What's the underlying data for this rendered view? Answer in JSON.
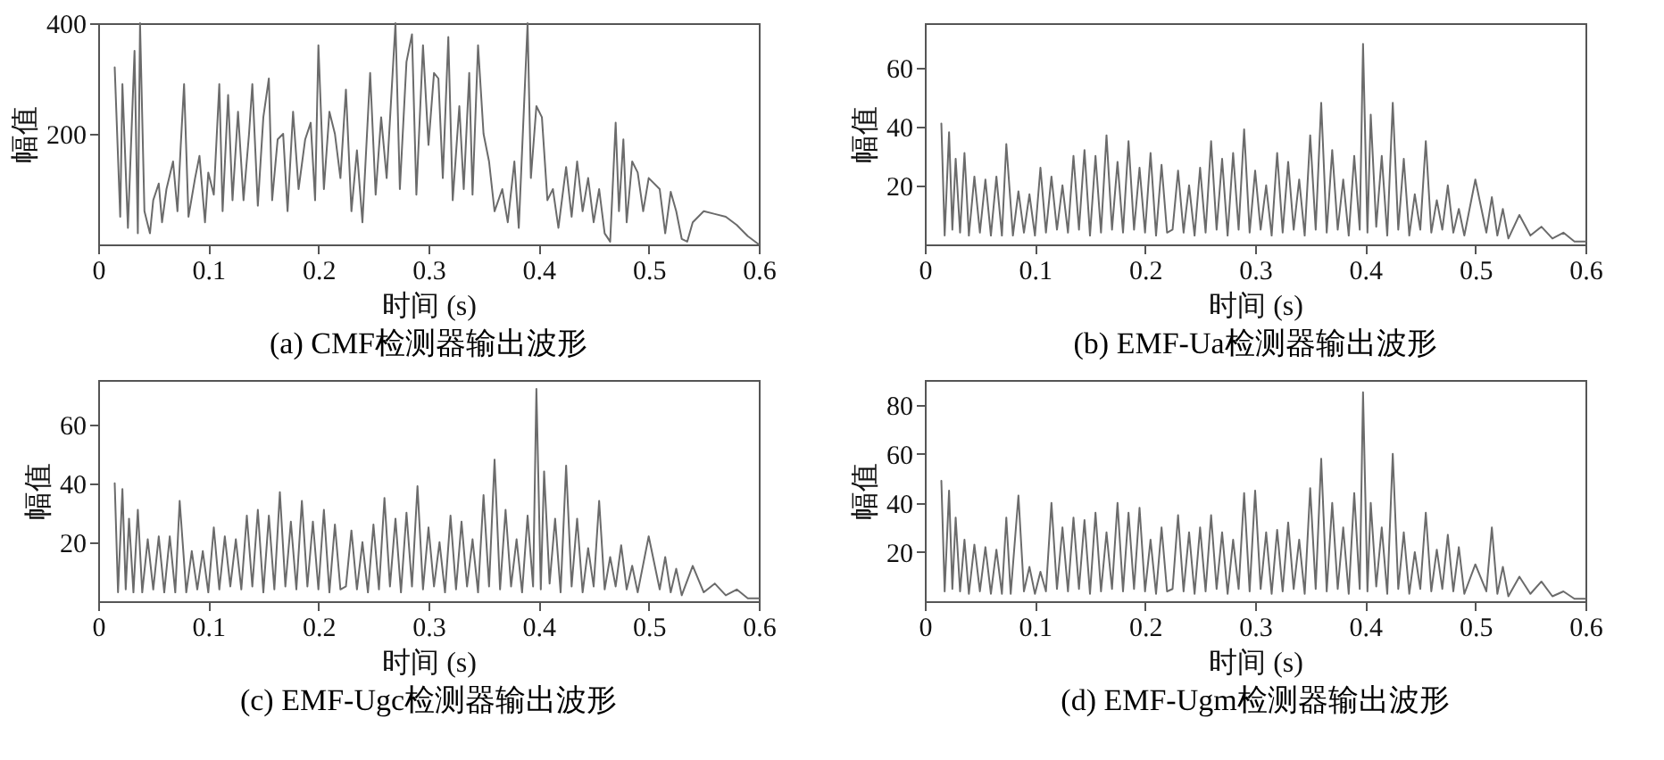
{
  "chart_data": [
    {
      "type": "line",
      "title": "(a) CMF检测器输出波形",
      "xlabel": "时间 (s)",
      "ylabel": "幅值",
      "xlim": [
        0,
        0.6
      ],
      "ylim": [
        0,
        400
      ],
      "xticks": [
        0,
        0.1,
        0.2,
        0.3,
        0.4,
        0.5,
        0.6
      ],
      "yticks": [
        200,
        400
      ],
      "grid": false,
      "series": [
        {
          "color": "#6b6b6b",
          "x": [
            0.015,
            0.02,
            0.022,
            0.027,
            0.033,
            0.036,
            0.038,
            0.042,
            0.047,
            0.05,
            0.055,
            0.058,
            0.062,
            0.068,
            0.072,
            0.075,
            0.078,
            0.082,
            0.088,
            0.092,
            0.097,
            0.1,
            0.105,
            0.11,
            0.113,
            0.118,
            0.122,
            0.127,
            0.132,
            0.137,
            0.14,
            0.145,
            0.15,
            0.155,
            0.158,
            0.163,
            0.168,
            0.172,
            0.177,
            0.182,
            0.188,
            0.193,
            0.197,
            0.2,
            0.205,
            0.21,
            0.215,
            0.22,
            0.225,
            0.23,
            0.235,
            0.24,
            0.247,
            0.252,
            0.257,
            0.262,
            0.27,
            0.274,
            0.28,
            0.285,
            0.289,
            0.295,
            0.3,
            0.305,
            0.309,
            0.313,
            0.318,
            0.322,
            0.328,
            0.332,
            0.337,
            0.34,
            0.345,
            0.35,
            0.355,
            0.36,
            0.367,
            0.372,
            0.378,
            0.382,
            0.39,
            0.393,
            0.398,
            0.403,
            0.408,
            0.413,
            0.418,
            0.425,
            0.43,
            0.435,
            0.44,
            0.445,
            0.45,
            0.455,
            0.46,
            0.465,
            0.47,
            0.473,
            0.477,
            0.48,
            0.485,
            0.49,
            0.495,
            0.5,
            0.51,
            0.515,
            0.52,
            0.525,
            0.53,
            0.535,
            0.54,
            0.55,
            0.56,
            0.57,
            0.58,
            0.59,
            0.6
          ],
          "values": [
            320,
            50,
            290,
            30,
            350,
            20,
            400,
            60,
            20,
            80,
            110,
            40,
            100,
            150,
            60,
            180,
            290,
            50,
            120,
            160,
            40,
            130,
            90,
            290,
            60,
            270,
            80,
            240,
            80,
            200,
            290,
            70,
            230,
            300,
            80,
            190,
            200,
            60,
            240,
            100,
            190,
            220,
            80,
            360,
            100,
            240,
            200,
            120,
            280,
            60,
            170,
            40,
            310,
            90,
            230,
            120,
            400,
            100,
            330,
            380,
            90,
            360,
            180,
            310,
            300,
            120,
            375,
            80,
            250,
            100,
            310,
            90,
            360,
            200,
            150,
            60,
            100,
            40,
            150,
            30,
            400,
            120,
            250,
            230,
            80,
            100,
            30,
            140,
            50,
            150,
            60,
            120,
            40,
            100,
            20,
            5,
            220,
            60,
            190,
            40,
            150,
            130,
            60,
            120,
            100,
            20,
            95,
            60,
            10,
            5,
            40,
            60,
            55,
            50,
            35,
            15,
            0
          ]
        }
      ]
    },
    {
      "type": "line",
      "title": "(b) EMF-Ua检测器输出波形",
      "xlabel": "时间 (s)",
      "ylabel": "幅值",
      "xlim": [
        0,
        0.6
      ],
      "ylim": [
        0,
        75
      ],
      "xticks": [
        0,
        0.1,
        0.2,
        0.3,
        0.4,
        0.5,
        0.6
      ],
      "yticks": [
        20,
        40,
        60
      ],
      "grid": false,
      "series": [
        {
          "color": "#6b6b6b",
          "x": [
            0.015,
            0.018,
            0.022,
            0.025,
            0.028,
            0.032,
            0.036,
            0.04,
            0.045,
            0.05,
            0.055,
            0.06,
            0.065,
            0.07,
            0.074,
            0.08,
            0.085,
            0.09,
            0.095,
            0.1,
            0.105,
            0.11,
            0.115,
            0.12,
            0.125,
            0.13,
            0.135,
            0.14,
            0.145,
            0.15,
            0.155,
            0.16,
            0.165,
            0.17,
            0.175,
            0.18,
            0.185,
            0.19,
            0.195,
            0.2,
            0.205,
            0.21,
            0.215,
            0.22,
            0.225,
            0.23,
            0.235,
            0.24,
            0.245,
            0.25,
            0.255,
            0.26,
            0.265,
            0.27,
            0.275,
            0.28,
            0.285,
            0.29,
            0.295,
            0.3,
            0.305,
            0.31,
            0.315,
            0.32,
            0.325,
            0.33,
            0.335,
            0.34,
            0.345,
            0.35,
            0.355,
            0.36,
            0.365,
            0.37,
            0.375,
            0.38,
            0.385,
            0.39,
            0.395,
            0.398,
            0.402,
            0.405,
            0.41,
            0.415,
            0.42,
            0.425,
            0.43,
            0.435,
            0.44,
            0.445,
            0.45,
            0.455,
            0.46,
            0.465,
            0.47,
            0.475,
            0.48,
            0.485,
            0.49,
            0.5,
            0.51,
            0.515,
            0.52,
            0.525,
            0.53,
            0.54,
            0.55,
            0.56,
            0.57,
            0.58,
            0.59,
            0.6
          ],
          "values": [
            41,
            3,
            38,
            5,
            29,
            4,
            31,
            3,
            23,
            4,
            22,
            3,
            23,
            3,
            34,
            3,
            18,
            4,
            17,
            3,
            26,
            4,
            23,
            5,
            20,
            4,
            30,
            5,
            32,
            3,
            30,
            4,
            37,
            5,
            28,
            4,
            35,
            5,
            26,
            4,
            31,
            3,
            27,
            4,
            5,
            25,
            4,
            20,
            3,
            26,
            4,
            35,
            5,
            29,
            3,
            31,
            5,
            39,
            4,
            25,
            5,
            20,
            3,
            31,
            4,
            28,
            5,
            22,
            3,
            37,
            5,
            48,
            4,
            32,
            5,
            22,
            3,
            30,
            5,
            68,
            4,
            44,
            6,
            30,
            3,
            48,
            5,
            29,
            3,
            17,
            5,
            35,
            4,
            15,
            5,
            20,
            4,
            12,
            3,
            22,
            4,
            16,
            3,
            12,
            2,
            10,
            3,
            6,
            2,
            4,
            1,
            1
          ]
        }
      ]
    },
    {
      "type": "line",
      "title": "(c) EMF-Ugc检测器输出波形",
      "xlabel": "时间 (s)",
      "ylabel": "幅值",
      "xlim": [
        0,
        0.6
      ],
      "ylim": [
        0,
        75
      ],
      "xticks": [
        0,
        0.1,
        0.2,
        0.3,
        0.4,
        0.5,
        0.6
      ],
      "yticks": [
        20,
        40,
        60
      ],
      "grid": false,
      "series": [
        {
          "color": "#6b6b6b",
          "x": [
            0.015,
            0.018,
            0.022,
            0.025,
            0.028,
            0.032,
            0.036,
            0.04,
            0.045,
            0.05,
            0.055,
            0.06,
            0.065,
            0.07,
            0.074,
            0.08,
            0.085,
            0.09,
            0.095,
            0.1,
            0.105,
            0.11,
            0.115,
            0.12,
            0.125,
            0.13,
            0.135,
            0.14,
            0.145,
            0.15,
            0.155,
            0.16,
            0.165,
            0.17,
            0.175,
            0.18,
            0.185,
            0.19,
            0.195,
            0.2,
            0.205,
            0.21,
            0.215,
            0.22,
            0.225,
            0.23,
            0.235,
            0.24,
            0.245,
            0.25,
            0.255,
            0.26,
            0.265,
            0.27,
            0.275,
            0.28,
            0.285,
            0.29,
            0.295,
            0.3,
            0.305,
            0.31,
            0.315,
            0.32,
            0.325,
            0.33,
            0.335,
            0.34,
            0.345,
            0.35,
            0.355,
            0.36,
            0.365,
            0.37,
            0.375,
            0.38,
            0.385,
            0.39,
            0.395,
            0.398,
            0.402,
            0.405,
            0.41,
            0.415,
            0.42,
            0.425,
            0.43,
            0.435,
            0.44,
            0.445,
            0.45,
            0.455,
            0.46,
            0.465,
            0.47,
            0.475,
            0.48,
            0.485,
            0.49,
            0.5,
            0.51,
            0.515,
            0.52,
            0.525,
            0.53,
            0.54,
            0.55,
            0.56,
            0.57,
            0.58,
            0.59,
            0.6
          ],
          "values": [
            40,
            3,
            38,
            4,
            28,
            3,
            31,
            3,
            21,
            4,
            22,
            3,
            22,
            3,
            34,
            3,
            17,
            4,
            17,
            3,
            25,
            4,
            22,
            5,
            21,
            4,
            29,
            5,
            31,
            3,
            29,
            4,
            37,
            5,
            27,
            4,
            34,
            5,
            27,
            4,
            31,
            3,
            26,
            4,
            5,
            24,
            4,
            20,
            3,
            26,
            4,
            35,
            5,
            28,
            3,
            30,
            5,
            39,
            4,
            25,
            5,
            20,
            3,
            29,
            4,
            27,
            5,
            21,
            3,
            36,
            5,
            48,
            4,
            31,
            5,
            21,
            3,
            29,
            5,
            72,
            4,
            44,
            6,
            28,
            3,
            46,
            5,
            28,
            3,
            18,
            5,
            34,
            4,
            15,
            5,
            19,
            4,
            12,
            3,
            22,
            4,
            15,
            3,
            11,
            2,
            12,
            3,
            6,
            2,
            4,
            1,
            1
          ]
        }
      ]
    },
    {
      "type": "line",
      "title": "(d) EMF-Ugm检测器输出波形",
      "xlabel": "时间 (s)",
      "ylabel": "幅值",
      "xlim": [
        0,
        0.6
      ],
      "ylim": [
        0,
        90
      ],
      "xticks": [
        0,
        0.1,
        0.2,
        0.3,
        0.4,
        0.5,
        0.6
      ],
      "yticks": [
        20,
        40,
        60,
        80
      ],
      "grid": false,
      "series": [
        {
          "color": "#6b6b6b",
          "x": [
            0.015,
            0.018,
            0.022,
            0.025,
            0.028,
            0.032,
            0.036,
            0.04,
            0.045,
            0.05,
            0.055,
            0.06,
            0.065,
            0.07,
            0.074,
            0.078,
            0.085,
            0.09,
            0.095,
            0.1,
            0.105,
            0.11,
            0.115,
            0.12,
            0.125,
            0.13,
            0.135,
            0.14,
            0.145,
            0.15,
            0.155,
            0.16,
            0.165,
            0.17,
            0.175,
            0.18,
            0.185,
            0.19,
            0.195,
            0.2,
            0.205,
            0.21,
            0.215,
            0.22,
            0.225,
            0.23,
            0.235,
            0.24,
            0.245,
            0.25,
            0.255,
            0.26,
            0.265,
            0.27,
            0.275,
            0.28,
            0.285,
            0.29,
            0.295,
            0.3,
            0.305,
            0.31,
            0.315,
            0.32,
            0.325,
            0.33,
            0.335,
            0.34,
            0.345,
            0.35,
            0.355,
            0.36,
            0.365,
            0.37,
            0.375,
            0.38,
            0.385,
            0.39,
            0.395,
            0.398,
            0.402,
            0.405,
            0.41,
            0.415,
            0.42,
            0.425,
            0.43,
            0.435,
            0.44,
            0.445,
            0.45,
            0.455,
            0.46,
            0.465,
            0.47,
            0.475,
            0.48,
            0.485,
            0.49,
            0.5,
            0.51,
            0.515,
            0.52,
            0.525,
            0.53,
            0.54,
            0.55,
            0.56,
            0.57,
            0.58,
            0.59,
            0.6
          ],
          "values": [
            49,
            4,
            45,
            5,
            34,
            4,
            25,
            3,
            23,
            4,
            22,
            3,
            21,
            3,
            34,
            3,
            43,
            4,
            14,
            3,
            12,
            4,
            40,
            5,
            30,
            4,
            34,
            5,
            33,
            3,
            36,
            4,
            28,
            5,
            40,
            4,
            36,
            5,
            38,
            4,
            25,
            3,
            30,
            4,
            5,
            35,
            4,
            28,
            3,
            30,
            4,
            35,
            5,
            28,
            3,
            25,
            5,
            44,
            4,
            45,
            5,
            28,
            3,
            29,
            4,
            32,
            5,
            25,
            3,
            46,
            5,
            58,
            4,
            40,
            5,
            30,
            3,
            44,
            5,
            85,
            4,
            40,
            6,
            30,
            3,
            60,
            5,
            28,
            3,
            20,
            5,
            36,
            4,
            21,
            5,
            27,
            4,
            22,
            3,
            15,
            4,
            30,
            3,
            14,
            2,
            10,
            3,
            8,
            2,
            4,
            1,
            1
          ]
        }
      ]
    }
  ]
}
